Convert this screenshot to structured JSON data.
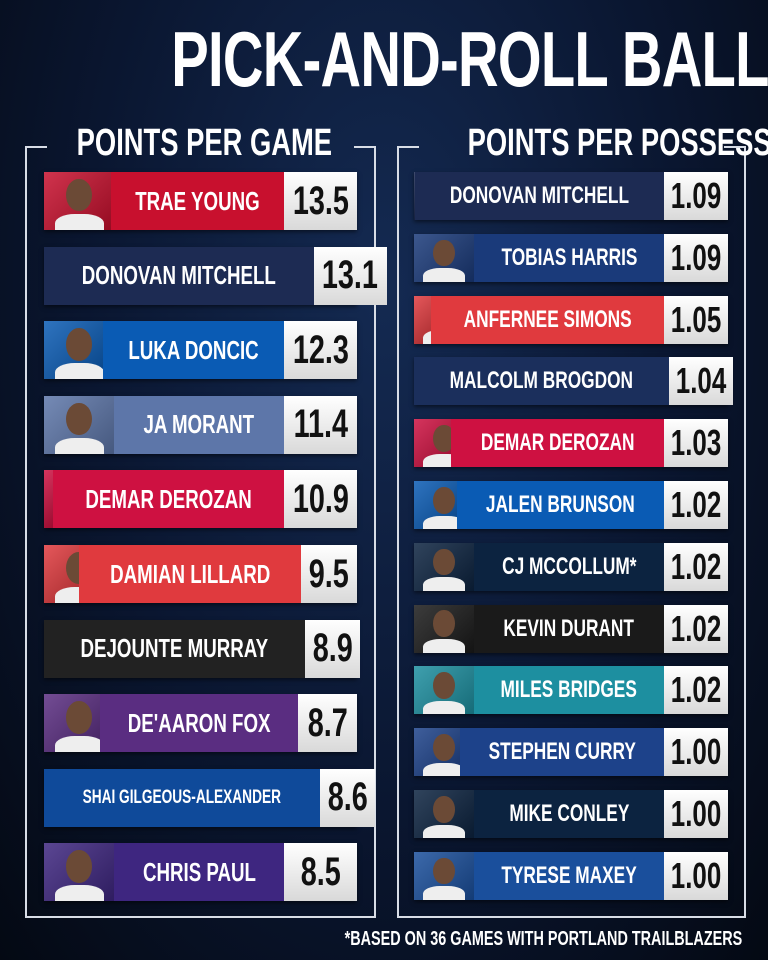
{
  "title": "PICK-AND-ROLL BALL HANDLER",
  "panels": [
    {
      "heading": "POINTS PER GAME",
      "rows": [
        {
          "name": "TRAE YOUNG",
          "value": "13.5",
          "color": "#c8102e"
        },
        {
          "name": "DONOVAN MITCHELL",
          "value": "13.1",
          "color": "#1d2b53"
        },
        {
          "name": "LUKA DONCIC",
          "value": "12.3",
          "color": "#0a5bb4"
        },
        {
          "name": "JA MORANT",
          "value": "11.4",
          "color": "#5d76a9"
        },
        {
          "name": "DEMAR DEROZAN",
          "value": "10.9",
          "color": "#ce1141"
        },
        {
          "name": "DAMIAN LILLARD",
          "value": "9.5",
          "color": "#e03a3e"
        },
        {
          "name": "DEJOUNTE MURRAY",
          "value": "8.9",
          "color": "#222222"
        },
        {
          "name": "DE'AARON FOX",
          "value": "8.7",
          "color": "#5a2d81"
        },
        {
          "name": "SHAI GILGEOUS-ALEXANDER",
          "value": "8.6",
          "color": "#0f4a9a"
        },
        {
          "name": "CHRIS PAUL",
          "value": "8.5",
          "color": "#3e2680"
        }
      ]
    },
    {
      "heading": "POINTS PER POSSESSION",
      "rows": [
        {
          "name": "DONOVAN MITCHELL",
          "value": "1.09",
          "color": "#1d2b53"
        },
        {
          "name": "TOBIAS HARRIS",
          "value": "1.09",
          "color": "#1a3a7a"
        },
        {
          "name": "ANFERNEE SIMONS",
          "value": "1.05",
          "color": "#e03a3e"
        },
        {
          "name": "MALCOLM BROGDON",
          "value": "1.04",
          "color": "#1b2f5c"
        },
        {
          "name": "DEMAR DEROZAN",
          "value": "1.03",
          "color": "#ce1141"
        },
        {
          "name": "JALEN BRUNSON",
          "value": "1.02",
          "color": "#0a5bb4"
        },
        {
          "name": "CJ MCCOLLUM*",
          "value": "1.02",
          "color": "#0c2340"
        },
        {
          "name": "KEVIN DURANT",
          "value": "1.02",
          "color": "#1a1a1a"
        },
        {
          "name": "MILES BRIDGES",
          "value": "1.02",
          "color": "#1d8fa0"
        },
        {
          "name": "STEPHEN CURRY",
          "value": "1.00",
          "color": "#1d428a"
        },
        {
          "name": "MIKE CONLEY",
          "value": "1.00",
          "color": "#0c2340"
        },
        {
          "name": "TYRESE MAXEY",
          "value": "1.00",
          "color": "#1a4f9c"
        }
      ]
    }
  ],
  "footnote": "*BASED ON 36 GAMES WITH PORTLAND TRAILBLAZERS"
}
